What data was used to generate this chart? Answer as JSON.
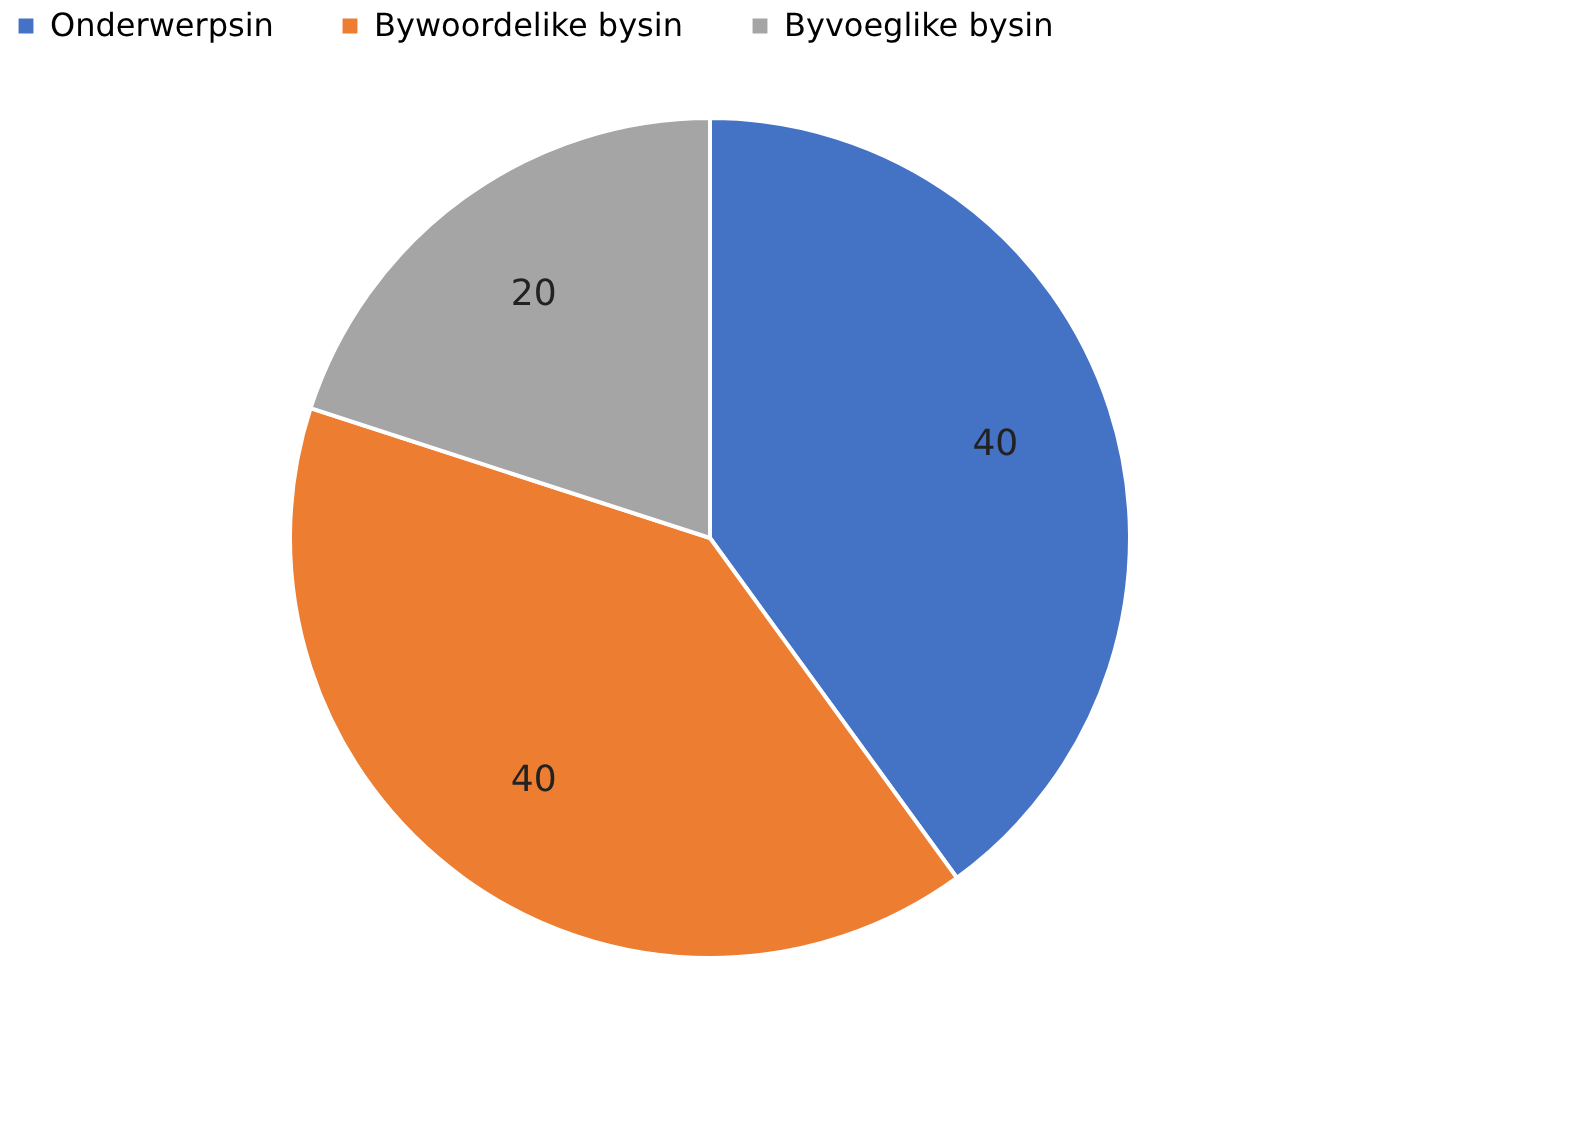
{
  "chart_data": {
    "type": "pie",
    "categories": [
      "Onderwerpsin",
      "Bywoordelike bysin",
      "Byvoeglike bysin"
    ],
    "values": [
      40,
      40,
      20
    ],
    "colors": [
      "#4472c4",
      "#ed7d31",
      "#a5a5a5"
    ],
    "data_labels": true,
    "legend": "top"
  }
}
